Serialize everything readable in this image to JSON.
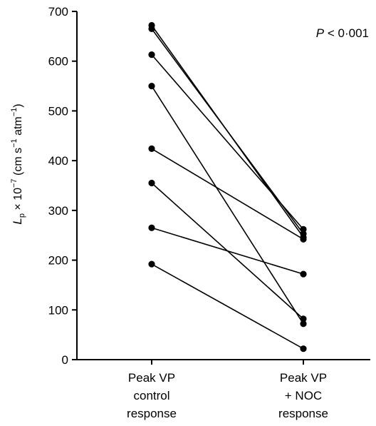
{
  "chart_data": {
    "type": "line",
    "title": "",
    "annotation": {
      "italic": "P",
      "rest": " < 0·001"
    },
    "ylabel": {
      "var": "L",
      "var_sub": "p",
      "times": " × 10",
      "times_sup": "−7",
      "unit_a": " (cm s",
      "unit_a_sup": "−1",
      "unit_b": " atm",
      "unit_b_sup": "−1",
      "close": ")"
    },
    "ylim": [
      0,
      700
    ],
    "yticks": [
      0,
      100,
      200,
      300,
      400,
      500,
      600,
      700
    ],
    "categories": [
      {
        "lines": [
          "Peak VP",
          "control",
          "response"
        ]
      },
      {
        "lines": [
          "Peak VP",
          "+ NOC",
          "response"
        ]
      }
    ],
    "series": [
      {
        "values": [
          672,
          246
        ]
      },
      {
        "values": [
          665,
          253
        ]
      },
      {
        "values": [
          613,
          262
        ]
      },
      {
        "values": [
          550,
          72
        ]
      },
      {
        "values": [
          424,
          242
        ]
      },
      {
        "values": [
          355,
          82
        ]
      },
      {
        "values": [
          265,
          172
        ]
      },
      {
        "values": [
          192,
          22
        ]
      }
    ],
    "line_color": "#000000",
    "marker_color": "#000000"
  }
}
